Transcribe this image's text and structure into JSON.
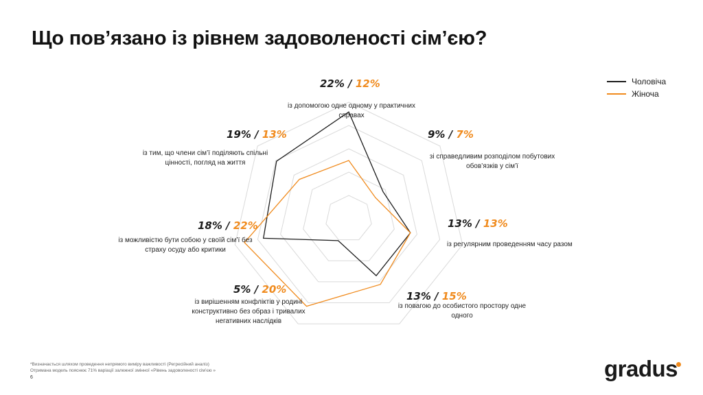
{
  "title": "Що пов’язано із рівнем задоволеності сім’єю?",
  "legend": [
    {
      "label": "Чоловіча",
      "color": "#1a1a1a"
    },
    {
      "label": "Жіноча",
      "color": "#f08a1c"
    }
  ],
  "chart_data": {
    "type": "radar",
    "series": [
      {
        "name": "Чоловіча",
        "color": "#1a1a1a",
        "values": [
          22,
          9,
          13,
          13,
          5,
          18,
          19
        ]
      },
      {
        "name": "Жіноча",
        "color": "#f08a1c",
        "values": [
          12,
          7,
          13,
          15,
          20,
          22,
          13
        ]
      }
    ],
    "categories": [
      "із допомогою одне одному у практичних справах",
      "зі справедливим розподілом побутових обов’язків у сім’ї",
      "із регулярним проведенням часу разом",
      "із повагою до особистого простору одне одного",
      "із вирішенням конфліктів у родині конструктивно без образ і тривалих негативних наслідків",
      "із можливістю бути собою у своїй сім’ї без страху осуду або критики",
      "із тим, що члени сім’ї поділяють спільні цінності, погляд на життя"
    ],
    "axes": [
      {
        "men": "22%",
        "women": "12%",
        "lines": [
          "із допомогою одне одному у практичних",
          "справах"
        ]
      },
      {
        "men": "9%",
        "women": "7%",
        "lines": [
          "зі справедливим розподілом побутових",
          "обов’язків у сім’ї"
        ]
      },
      {
        "men": "13%",
        "women": "13%",
        "lines": [
          "із регулярним проведенням часу разом"
        ]
      },
      {
        "men": "13%",
        "women": "15%",
        "lines": [
          "із повагою до особистого простору одне",
          "одного"
        ]
      },
      {
        "men": "5%",
        "women": "20%",
        "lines": [
          "із вирішенням конфліктів у родині",
          "конструктивно без образ і тривалих",
          "негативних наслідків"
        ]
      },
      {
        "men": "18%",
        "women": "22%",
        "lines": [
          "із можливістю бути собою у своїй сім’ї без",
          "страху осуду або критики"
        ]
      },
      {
        "men": "19%",
        "women": "13%",
        "lines": [
          "із тим, що члени сім’ї поділяють спільні",
          "цінності, погляд на життя"
        ]
      }
    ],
    "rmax": 24,
    "grid": true
  },
  "footnote": {
    "line1": "*Визначається шляхом проведення непрямого виміру важливості (Регресійний аналіз)",
    "line2": "Отримана модель пояснює 71% варіації залежної змінної «Рівень задоволеності сім’єю »"
  },
  "page_number": "6",
  "logo": "gradus"
}
